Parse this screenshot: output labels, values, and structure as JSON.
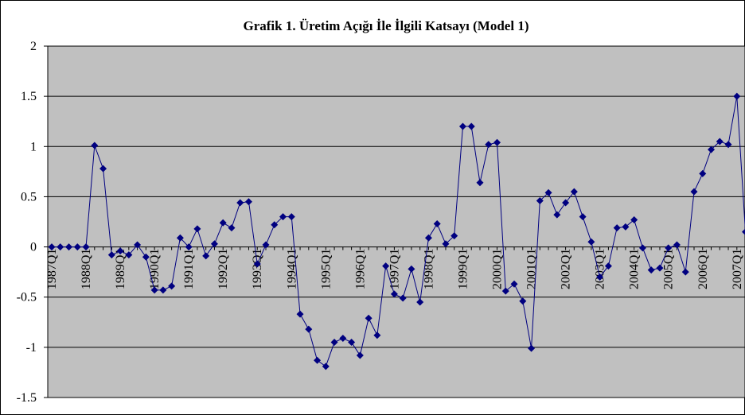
{
  "chart_data": {
    "type": "line",
    "title": "Grafik 1. Üretim Açığı İle İlgili Katsayı (Model 1)",
    "categories": [
      "1987Q1",
      null,
      null,
      null,
      "1988Q1",
      null,
      null,
      null,
      "1989Q1",
      null,
      null,
      null,
      "1990Q1",
      null,
      null,
      null,
      "1991Q1",
      null,
      null,
      null,
      "1992Q1",
      null,
      null,
      null,
      "1993Q1",
      null,
      null,
      null,
      "1994Q1",
      null,
      null,
      null,
      "1995Q1",
      null,
      null,
      null,
      "1996Q1",
      null,
      null,
      null,
      "1997Q1",
      null,
      null,
      null,
      "1998Q1",
      null,
      null,
      null,
      "1999Q1",
      null,
      null,
      null,
      "2000Q1",
      null,
      null,
      null,
      "2001Q1",
      null,
      null,
      null,
      "2002Q1",
      null,
      null,
      null,
      "2003Q1",
      null,
      null,
      null,
      "2004Q1",
      null,
      null,
      null,
      "2005Q1",
      null,
      null,
      null,
      "2006Q1",
      null,
      null,
      null,
      "2007Q1",
      null
    ],
    "values": [
      0,
      0,
      0,
      0,
      0,
      1.01,
      0.78,
      -0.08,
      -0.04,
      -0.08,
      0.02,
      -0.1,
      -0.43,
      -0.43,
      -0.39,
      0.09,
      0,
      0.18,
      -0.09,
      0.03,
      0.24,
      0.19,
      0.44,
      0.45,
      -0.17,
      0.02,
      0.22,
      0.3,
      0.3,
      -0.67,
      -0.82,
      -1.13,
      -1.19,
      -0.95,
      -0.91,
      -0.95,
      -1.08,
      -0.71,
      -0.88,
      -0.19,
      -0.47,
      -0.51,
      -0.22,
      -0.55,
      0.09,
      0.23,
      0.03,
      0.11,
      1.2,
      1.2,
      0.64,
      1.02,
      1.04,
      -0.44,
      -0.37,
      -0.54,
      -1.01,
      0.46,
      0.54,
      0.32,
      0.44,
      0.55,
      0.3,
      0.05,
      -0.3,
      -0.19,
      0.19,
      0.2,
      0.27,
      -0.01,
      -0.23,
      -0.21,
      -0.01,
      0.02,
      -0.25,
      0.55,
      0.73,
      0.97,
      1.05,
      1.02,
      1.5,
      0.15
    ],
    "color": "#000080",
    "ylim": [
      -1.5,
      2
    ],
    "yticks": [
      -1.5,
      -1,
      -0.5,
      0,
      0.5,
      1,
      1.5,
      2
    ],
    "grid": true
  }
}
